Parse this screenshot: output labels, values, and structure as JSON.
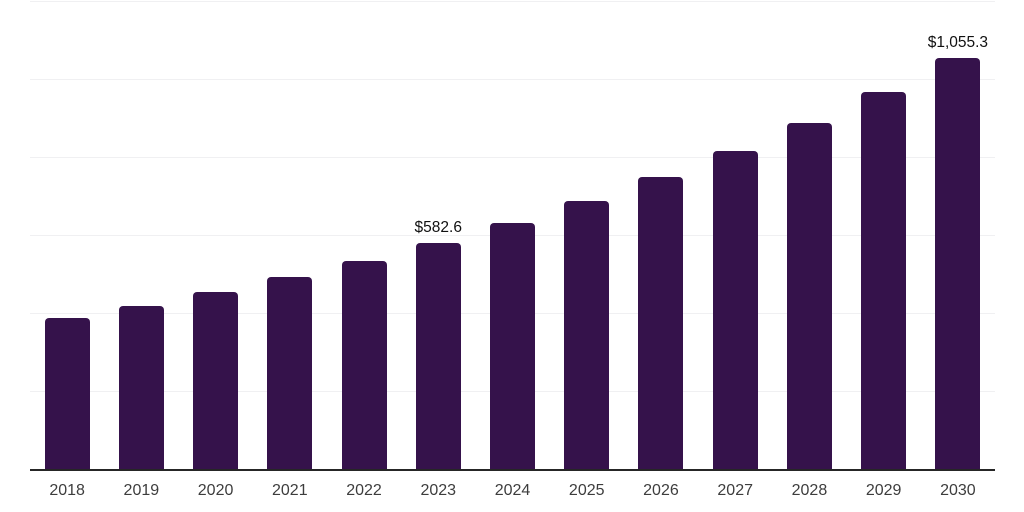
{
  "chart_data": {
    "type": "bar",
    "title": "",
    "categories": [
      "2018",
      "2019",
      "2020",
      "2021",
      "2022",
      "2023",
      "2024",
      "2025",
      "2026",
      "2027",
      "2028",
      "2029",
      "2030"
    ],
    "values": [
      389.3,
      419.8,
      455.2,
      493.9,
      535.8,
      582.6,
      634.2,
      690.3,
      751.4,
      818.0,
      890.5,
      969.4,
      1055.3
    ],
    "point_labels": [
      "",
      "",
      "",
      "",
      "",
      "$582.6",
      "",
      "",
      "",
      "",
      "",
      "",
      "$1,055.3"
    ],
    "xlabel": "",
    "ylabel": "",
    "ylim": [
      0,
      1200
    ],
    "grid": true,
    "grid_step": 200,
    "y_tick_labels_visible": false,
    "legend": "none",
    "colors": {
      "bar": "#35124B",
      "gridline": "#f0f0f2",
      "axis": "#262626",
      "tick_label": "#3d3d3d",
      "value_label": "#111111",
      "background": "#ffffff"
    }
  }
}
